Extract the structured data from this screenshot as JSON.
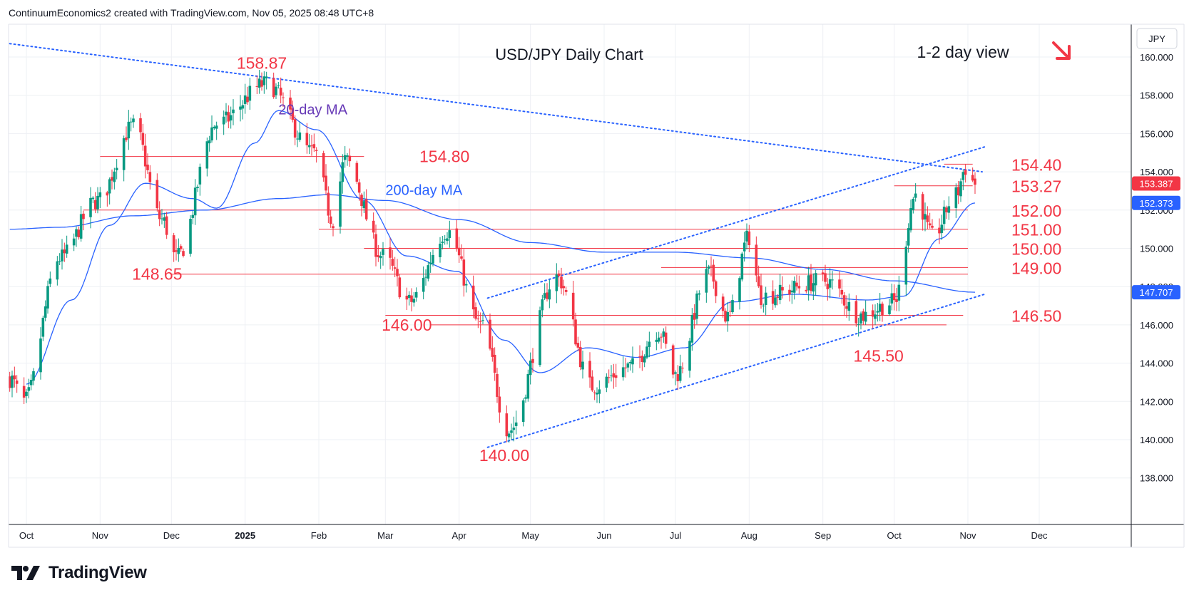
{
  "header": {
    "attribution": "ContinuumEconomics2 created with TradingView.com, Nov 05, 2025 08:48 UTC+8"
  },
  "footer": {
    "brand": "TradingView"
  },
  "chart_data": {
    "type": "candlestick",
    "title": "USD/JPY Daily Chart",
    "subtitle": "1-2 day view",
    "currency_label": "JPY",
    "outlook_arrow": "down-right",
    "colors": {
      "up": "#089981",
      "down": "#f23645",
      "ma20": "#2962ff",
      "ma200": "#2962ff",
      "levels": "#f23645",
      "trendline": "#2962ff",
      "price_tag": "#f23645",
      "ma_tag": "#2962ff"
    },
    "ylim": [
      137,
      161.5
    ],
    "y_ticks": [
      "138.000",
      "140.000",
      "142.000",
      "144.000",
      "146.000",
      "148.000",
      "150.000",
      "152.000",
      "154.000",
      "156.000",
      "158.000",
      "160.000"
    ],
    "x_ticks": [
      {
        "label": "Oct",
        "date": "2024-10-01"
      },
      {
        "label": "Nov",
        "date": "2024-11-01"
      },
      {
        "label": "Dec",
        "date": "2024-12-01"
      },
      {
        "label": "2025",
        "date": "2025-01-01",
        "bold": true
      },
      {
        "label": "Feb",
        "date": "2025-02-01"
      },
      {
        "label": "Mar",
        "date": "2025-03-01"
      },
      {
        "label": "Apr",
        "date": "2025-04-01"
      },
      {
        "label": "May",
        "date": "2025-05-01"
      },
      {
        "label": "Jun",
        "date": "2025-06-01"
      },
      {
        "label": "Jul",
        "date": "2025-07-01"
      },
      {
        "label": "Aug",
        "date": "2025-08-01"
      },
      {
        "label": "Sep",
        "date": "2025-09-01"
      },
      {
        "label": "Oct",
        "date": "2025-10-01"
      },
      {
        "label": "Nov",
        "date": "2025-11-01"
      },
      {
        "label": "Dec",
        "date": "2025-12-01"
      }
    ],
    "price_tags": [
      {
        "value": 153.387,
        "label": "153.387",
        "kind": "price"
      },
      {
        "value": 152.373,
        "label": "152.373",
        "kind": "ma20"
      },
      {
        "value": 147.707,
        "label": "147.707",
        "kind": "ma200"
      }
    ],
    "levels": [
      {
        "value": 154.8,
        "label": "154.80",
        "from": "2024-11-01",
        "to": "2025-02-20"
      },
      {
        "value": 152.0,
        "label": "152.00",
        "from": "2024-10-25",
        "to": "2025-11-01"
      },
      {
        "value": 151.0,
        "label": "151.00",
        "from": "2025-02-01",
        "to": "2025-11-01"
      },
      {
        "value": 150.0,
        "label": "150.00",
        "from": "2025-02-20",
        "to": "2025-11-01"
      },
      {
        "value": 149.0,
        "label": "149.00",
        "from": "2025-06-25",
        "to": "2025-11-01"
      },
      {
        "value": 148.65,
        "label": "148.65",
        "from": "2024-12-01",
        "to": "2025-11-01"
      },
      {
        "value": 146.5,
        "label": "146.50",
        "from": "2025-03-01",
        "to": "2025-10-30"
      },
      {
        "value": 146.0,
        "label": "146.00",
        "from": "2025-03-20",
        "to": "2025-10-23"
      },
      {
        "value": 154.4,
        "label": "154.40",
        "from": "2025-10-22",
        "to": "2025-11-03"
      },
      {
        "value": 153.27,
        "label": "153.27",
        "from": "2025-10-01",
        "to": "2025-11-03"
      }
    ],
    "annotations": [
      {
        "text": "158.87",
        "date": "2025-01-08",
        "value": 158.87
      },
      {
        "text": "148.65",
        "date": "2024-11-25",
        "value": 148.65
      },
      {
        "text": "146.00",
        "date": "2025-03-10",
        "value": 146.0
      },
      {
        "text": "140.00",
        "date": "2025-04-20",
        "value": 140.0
      },
      {
        "text": "145.50",
        "date": "2025-09-16",
        "value": 145.5
      },
      {
        "text": "154.40",
        "date": "2025-11-03",
        "value": 154.4
      },
      {
        "text": "153.27",
        "date": "2025-11-03",
        "value": 153.27
      },
      {
        "text": "152.00",
        "date": "2025-11-03",
        "value": 152.0
      },
      {
        "text": "151.00",
        "date": "2025-11-03",
        "value": 151.0
      },
      {
        "text": "150.00",
        "date": "2025-11-03",
        "value": 150.0
      },
      {
        "text": "149.00",
        "date": "2025-11-03",
        "value": 149.0
      },
      {
        "text": "146.50",
        "date": "2025-11-03",
        "value": 146.5
      }
    ],
    "ma_labels": [
      {
        "text": "20-day MA",
        "date": "2025-01-15",
        "value": 157.0,
        "color": "#673ab7"
      },
      {
        "text": "200-day MA",
        "date": "2025-03-01",
        "value": 152.8,
        "color": "#2962ff"
      }
    ],
    "trendlines": [
      {
        "name": "falling-resistance",
        "from": {
          "date": "2024-09-24",
          "value": 160.7
        },
        "to": {
          "date": "2025-11-07",
          "value": 154.0
        }
      },
      {
        "name": "channel-top",
        "from": {
          "date": "2025-04-13",
          "value": 147.4
        },
        "to": {
          "date": "2025-11-08",
          "value": 155.3
        }
      },
      {
        "name": "channel-bottom",
        "from": {
          "date": "2025-04-13",
          "value": 139.6
        },
        "to": {
          "date": "2025-11-08",
          "value": 147.6
        }
      }
    ],
    "anchors": [
      {
        "date": "2024-09-24",
        "value": 143.2
      },
      {
        "date": "2024-09-30",
        "value": 142.0
      },
      {
        "date": "2024-10-15",
        "value": 149.5
      },
      {
        "date": "2024-10-31",
        "value": 152.5
      },
      {
        "date": "2024-11-15",
        "value": 156.4
      },
      {
        "date": "2024-11-27",
        "value": 151.5
      },
      {
        "date": "2024-12-03",
        "value": 149.5
      },
      {
        "date": "2024-12-20",
        "value": 156.5
      },
      {
        "date": "2025-01-10",
        "value": 158.6
      },
      {
        "date": "2025-01-30",
        "value": 155.0
      },
      {
        "date": "2025-02-07",
        "value": 151.5
      },
      {
        "date": "2025-02-12",
        "value": 154.6
      },
      {
        "date": "2025-02-28",
        "value": 149.6
      },
      {
        "date": "2025-03-11",
        "value": 147.2
      },
      {
        "date": "2025-03-27",
        "value": 150.9
      },
      {
        "date": "2025-04-10",
        "value": 146.0
      },
      {
        "date": "2025-04-22",
        "value": 140.5
      },
      {
        "date": "2025-05-12",
        "value": 148.5
      },
      {
        "date": "2025-05-27",
        "value": 142.8
      },
      {
        "date": "2025-06-12",
        "value": 143.8
      },
      {
        "date": "2025-06-24",
        "value": 145.7
      },
      {
        "date": "2025-07-01",
        "value": 143.4
      },
      {
        "date": "2025-07-15",
        "value": 148.7
      },
      {
        "date": "2025-07-23",
        "value": 146.4
      },
      {
        "date": "2025-08-01",
        "value": 150.6
      },
      {
        "date": "2025-08-06",
        "value": 147.5
      },
      {
        "date": "2025-09-02",
        "value": 148.3
      },
      {
        "date": "2025-09-17",
        "value": 146.5
      },
      {
        "date": "2025-10-01",
        "value": 147.2
      },
      {
        "date": "2025-10-10",
        "value": 152.8
      },
      {
        "date": "2025-10-17",
        "value": 150.6
      },
      {
        "date": "2025-10-27",
        "value": 152.8
      },
      {
        "date": "2025-10-31",
        "value": 154.2
      },
      {
        "date": "2025-11-04",
        "value": 153.39
      }
    ],
    "ma20_anchors": [
      {
        "date": "2024-10-01",
        "value": 142.9
      },
      {
        "date": "2024-10-20",
        "value": 147.3
      },
      {
        "date": "2024-11-05",
        "value": 151.2
      },
      {
        "date": "2024-11-20",
        "value": 153.4
      },
      {
        "date": "2024-12-10",
        "value": 152.6
      },
      {
        "date": "2024-12-20",
        "value": 152.1
      },
      {
        "date": "2025-01-05",
        "value": 155.5
      },
      {
        "date": "2025-01-15",
        "value": 157.2
      },
      {
        "date": "2025-01-31",
        "value": 156.2
      },
      {
        "date": "2025-02-20",
        "value": 152.5
      },
      {
        "date": "2025-03-10",
        "value": 149.6
      },
      {
        "date": "2025-03-31",
        "value": 148.8
      },
      {
        "date": "2025-04-20",
        "value": 145.2
      },
      {
        "date": "2025-05-05",
        "value": 143.5
      },
      {
        "date": "2025-05-25",
        "value": 144.8
      },
      {
        "date": "2025-06-15",
        "value": 144.3
      },
      {
        "date": "2025-07-05",
        "value": 144.8
      },
      {
        "date": "2025-07-25",
        "value": 147.2
      },
      {
        "date": "2025-08-20",
        "value": 147.6
      },
      {
        "date": "2025-09-20",
        "value": 147.3
      },
      {
        "date": "2025-10-05",
        "value": 147.5
      },
      {
        "date": "2025-10-20",
        "value": 150.5
      },
      {
        "date": "2025-11-04",
        "value": 152.37
      }
    ],
    "ma200_anchors": [
      {
        "date": "2024-09-24",
        "value": 151.0
      },
      {
        "date": "2024-10-15",
        "value": 151.1
      },
      {
        "date": "2024-11-15",
        "value": 151.7
      },
      {
        "date": "2024-12-15",
        "value": 152.0
      },
      {
        "date": "2025-01-15",
        "value": 152.6
      },
      {
        "date": "2025-02-05",
        "value": 152.8
      },
      {
        "date": "2025-03-01",
        "value": 152.5
      },
      {
        "date": "2025-04-01",
        "value": 151.5
      },
      {
        "date": "2025-05-01",
        "value": 150.3
      },
      {
        "date": "2025-06-01",
        "value": 149.8
      },
      {
        "date": "2025-07-01",
        "value": 149.8
      },
      {
        "date": "2025-08-01",
        "value": 149.5
      },
      {
        "date": "2025-09-01",
        "value": 148.9
      },
      {
        "date": "2025-10-01",
        "value": 148.3
      },
      {
        "date": "2025-11-04",
        "value": 147.707
      }
    ]
  }
}
